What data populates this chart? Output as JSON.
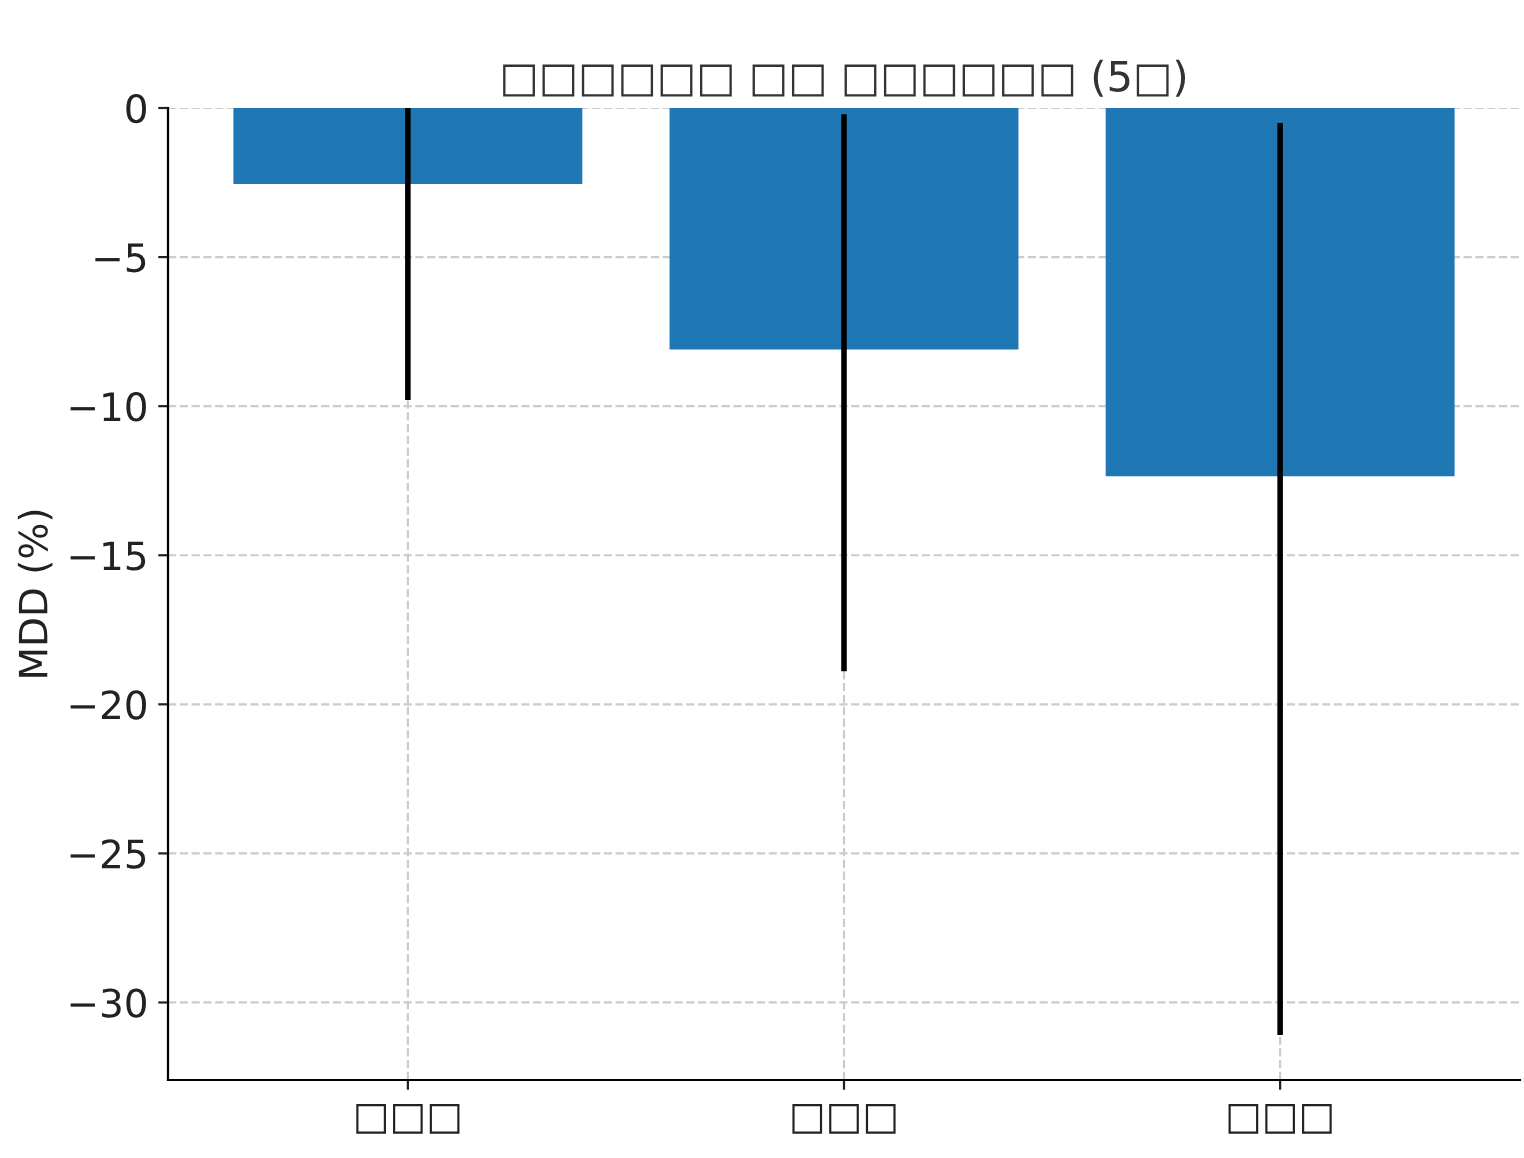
{
  "chart_data": {
    "type": "bar",
    "title": "□□□□□□ □□ □□□□□□ (5□)",
    "ylabel": "MDD (%)",
    "categories": [
      "□□□",
      "□□□",
      "□□□"
    ],
    "values": [
      -2.55,
      -8.1,
      -12.35
    ],
    "errors": [
      [
        -9.7,
        0
      ],
      [
        -18.8,
        -0.3
      ],
      [
        -31.0,
        -0.6
      ]
    ],
    "color": "#1f77b4",
    "ylim": [
      -32.6,
      0
    ],
    "yticks": [
      {
        "value": 0,
        "label": "0"
      },
      {
        "value": -5,
        "label": "−5"
      },
      {
        "value": -10,
        "label": "−10"
      },
      {
        "value": -15,
        "label": "−15"
      },
      {
        "value": -20,
        "label": "−20"
      },
      {
        "value": -25,
        "label": "−25"
      },
      {
        "value": -30,
        "label": "−30"
      }
    ],
    "grid": true
  }
}
